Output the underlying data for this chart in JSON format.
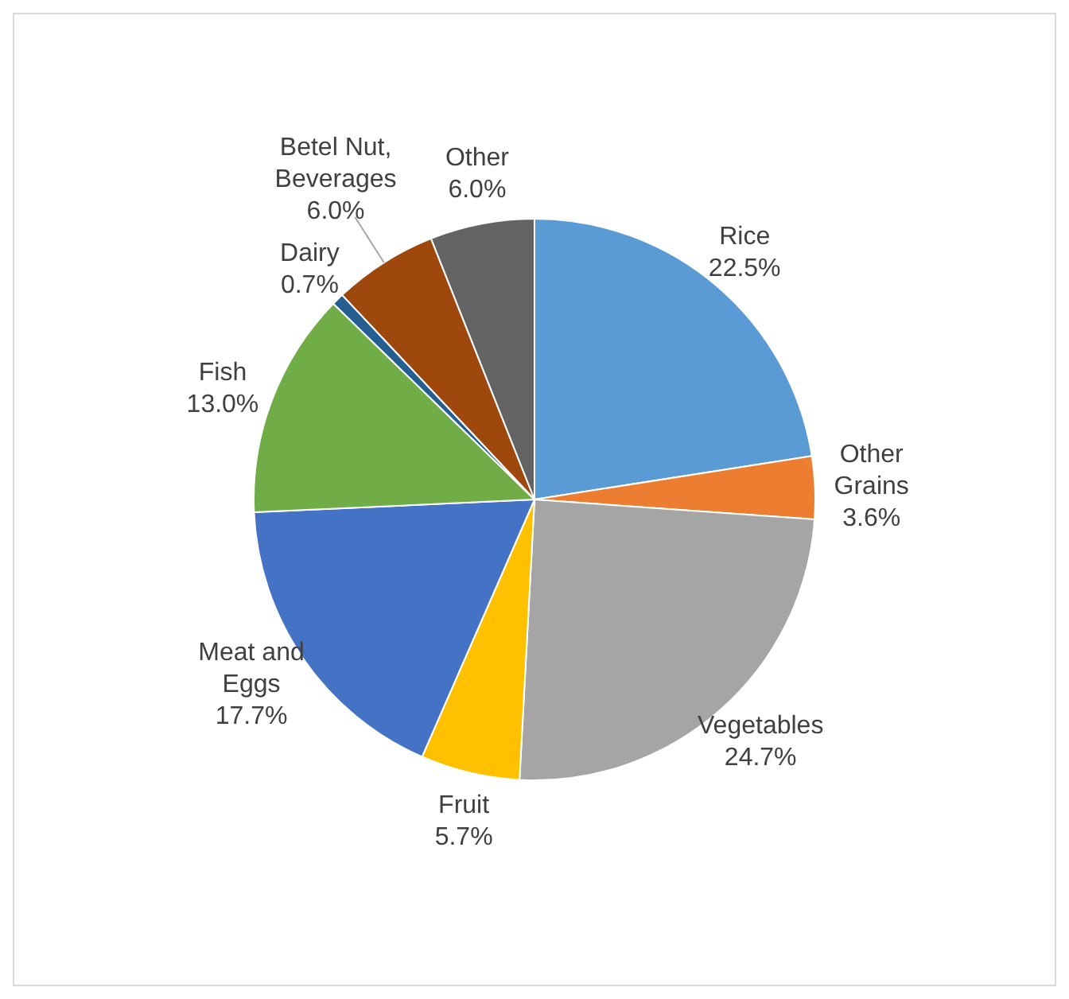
{
  "chart_data": {
    "type": "pie",
    "categories": [
      "Rice",
      "Other Grains",
      "Vegetables",
      "Fruit",
      "Meat and Eggs",
      "Fish",
      "Dairy",
      "Betel Nut, Beverages",
      "Other"
    ],
    "values": [
      22.5,
      3.6,
      24.7,
      5.7,
      17.7,
      13.0,
      0.7,
      6.0,
      6.0
    ],
    "colors": [
      "#5b9bd5",
      "#ed7d31",
      "#a5a5a5",
      "#ffc000",
      "#4472c4",
      "#70ad47",
      "#255e91",
      "#9e480e",
      "#636363"
    ],
    "value_labels": [
      "22.5%",
      "3.6%",
      "24.7%",
      "5.7%",
      "17.7%",
      "13.0%",
      "0.7%",
      "6.0%",
      "6.0%"
    ],
    "legend": false
  }
}
